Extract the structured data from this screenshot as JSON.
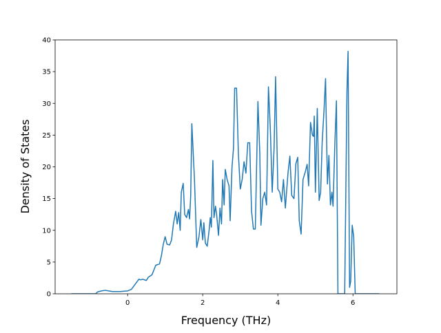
{
  "chart_data": {
    "type": "line",
    "xlabel": "Frequency (THz)",
    "ylabel": "Density of States",
    "x": [
      -1.5,
      -1.2,
      -0.85,
      -0.8,
      -0.7,
      -0.6,
      -0.5,
      -0.4,
      -0.2,
      0,
      0.1,
      0.2,
      0.3,
      0.35,
      0.4,
      0.5,
      0.55,
      0.65,
      0.75,
      0.85,
      0.9,
      0.95,
      1.0,
      1.05,
      1.12,
      1.17,
      1.22,
      1.28,
      1.32,
      1.36,
      1.4,
      1.43,
      1.48,
      1.52,
      1.57,
      1.62,
      1.65,
      1.68,
      1.71,
      1.78,
      1.84,
      1.9,
      1.95,
      2.0,
      2.03,
      2.07,
      2.12,
      2.17,
      2.2,
      2.23,
      2.27,
      2.3,
      2.34,
      2.37,
      2.42,
      2.46,
      2.5,
      2.53,
      2.57,
      2.6,
      2.65,
      2.7,
      2.73,
      2.78,
      2.82,
      2.85,
      2.9,
      2.95,
      3.0,
      3.05,
      3.1,
      3.15,
      3.2,
      3.25,
      3.3,
      3.35,
      3.4,
      3.47,
      3.52,
      3.55,
      3.6,
      3.65,
      3.7,
      3.75,
      3.8,
      3.85,
      3.9,
      3.94,
      4.0,
      4.05,
      4.1,
      4.15,
      4.2,
      4.27,
      4.32,
      4.37,
      4.43,
      4.48,
      4.53,
      4.57,
      4.62,
      4.67,
      4.73,
      4.78,
      4.82,
      4.87,
      4.92,
      4.95,
      4.97,
      5.0,
      5.05,
      5.1,
      5.14,
      5.18,
      5.23,
      5.27,
      5.32,
      5.36,
      5.4,
      5.44,
      5.47,
      5.52,
      5.56,
      5.6,
      5.78,
      5.84,
      5.87,
      5.91,
      5.94,
      5.98,
      6.02,
      6.06,
      6.7
    ],
    "series": [
      {
        "color": "#1f77b4",
        "values": [
          0,
          0,
          0,
          0.3,
          0.45,
          0.55,
          0.45,
          0.35,
          0.35,
          0.45,
          0.7,
          1.5,
          2.3,
          2.2,
          2.3,
          2.1,
          2.6,
          3,
          4.5,
          4.7,
          6,
          7.8,
          9,
          7.8,
          7.7,
          8.5,
          11,
          13,
          11,
          12.8,
          10,
          16,
          17.4,
          12.5,
          12,
          13.3,
          11.8,
          15.5,
          26.8,
          18,
          7.3,
          9,
          11.7,
          8.5,
          11.2,
          8,
          7.5,
          10,
          12,
          10.5,
          21,
          12,
          13.8,
          12.5,
          9.2,
          13.5,
          11,
          18,
          14,
          19.6,
          18,
          17,
          11.5,
          20,
          23,
          32.4,
          32.4,
          22,
          16.5,
          18,
          20.8,
          19,
          23.8,
          23.8,
          13,
          10.2,
          10.2,
          30.3,
          22,
          10.8,
          15,
          16,
          14,
          32.6,
          26,
          16,
          23,
          34.2,
          16.5,
          16,
          14.5,
          18,
          13.5,
          19,
          21.7,
          15.5,
          15,
          20.5,
          21.5,
          11.5,
          9.4,
          18,
          19.2,
          20.4,
          17,
          27,
          25,
          24.8,
          28,
          16,
          29.2,
          14.7,
          16,
          23.8,
          29,
          33.9,
          17.3,
          21.8,
          14,
          16,
          13.8,
          24,
          30.4,
          0,
          0,
          31.8,
          38.2,
          1,
          2,
          10.8,
          9,
          0,
          0
        ]
      }
    ],
    "xlim": [
      -1.93,
      7.17
    ],
    "ylim": [
      0,
      40
    ],
    "xticks": [
      0,
      2,
      4,
      6
    ],
    "yticks": [
      0,
      5,
      10,
      15,
      20,
      25,
      30,
      35,
      40
    ]
  }
}
